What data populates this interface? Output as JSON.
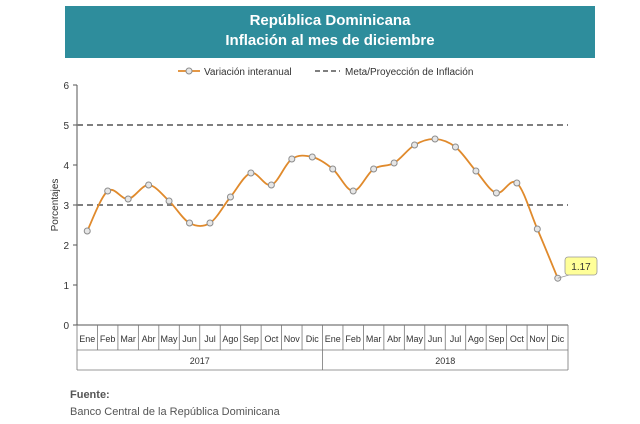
{
  "title": {
    "line1": "República Dominicana",
    "line2": "Inflación al mes de diciembre"
  },
  "source": {
    "label": "Fuente:",
    "text": "Banco Central de la República Dominicana"
  },
  "colors": {
    "banner": "#2e8d9c",
    "series": "#e08a2c",
    "target": "#7f7f7f",
    "callout": "#ffff99"
  },
  "chart_data": {
    "type": "line",
    "ylabel": "Porcentajes",
    "ylim": [
      0,
      6
    ],
    "yticks": [
      "0",
      "1",
      "2",
      "3",
      "4",
      "5",
      "6"
    ],
    "grid": false,
    "legend_position": "top",
    "months": [
      "Ene",
      "Feb",
      "Mar",
      "Abr",
      "May",
      "Jun",
      "Jul",
      "Ago",
      "Sep",
      "Oct",
      "Nov",
      "Dic",
      "Ene",
      "Feb",
      "Mar",
      "Abr",
      "May",
      "Jun",
      "Jul",
      "Ago",
      "Sep",
      "Oct",
      "Nov",
      "Dic"
    ],
    "years": [
      "2017",
      "2018"
    ],
    "series": [
      {
        "name": "Variación interanual",
        "values": [
          2.35,
          3.35,
          3.15,
          3.5,
          3.1,
          2.55,
          2.55,
          3.2,
          3.8,
          3.5,
          4.15,
          4.2,
          3.9,
          3.35,
          3.9,
          4.05,
          4.5,
          4.65,
          4.45,
          3.85,
          3.3,
          3.55,
          2.4,
          1.17
        ]
      }
    ],
    "target_band": {
      "name": "Meta/Proyección de Inflación",
      "lower": 3,
      "upper": 5
    },
    "annotation": {
      "label": "1.17",
      "index": 23
    }
  }
}
